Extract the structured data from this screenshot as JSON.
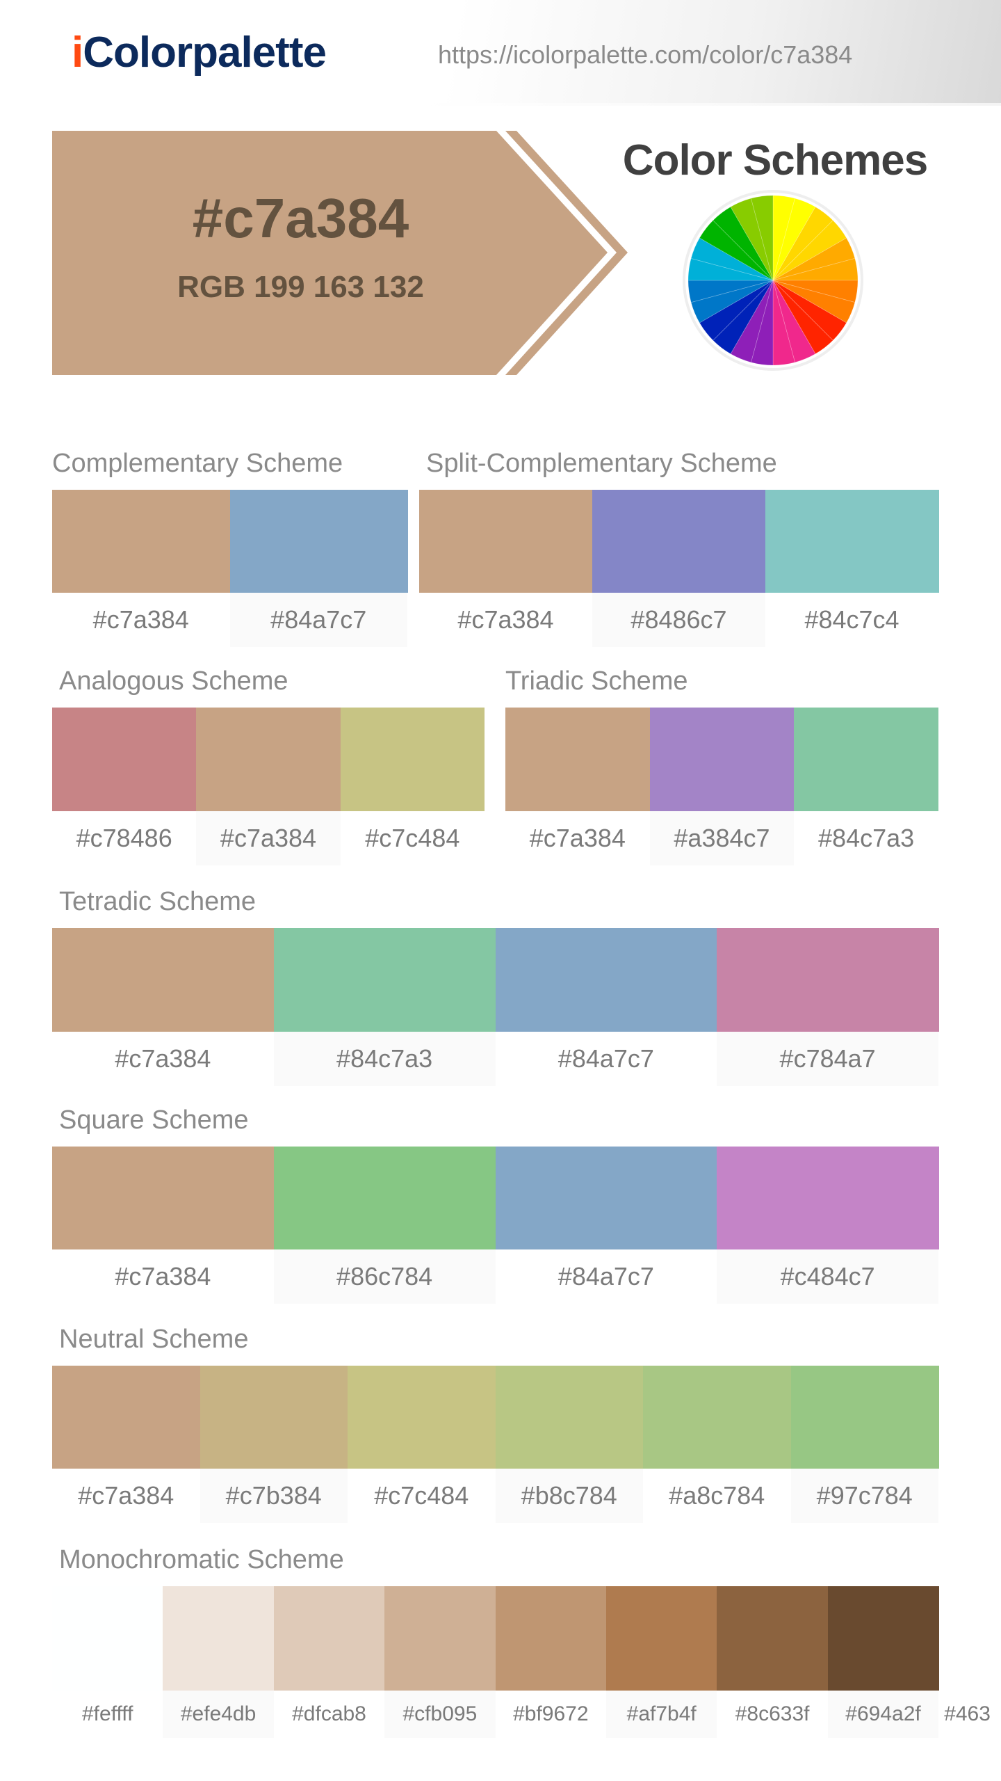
{
  "header": {
    "logo_prefix": "i",
    "logo_rest": "Colorpalette",
    "url": "https://icolorpalette.com/color/c7a384"
  },
  "hero": {
    "hex": "#c7a384",
    "rgb": "RGB 199 163 132",
    "color": "#c7a384",
    "text_color": "#63523f"
  },
  "color_schemes_title": "Color Schemes",
  "color_wheel": {
    "icon": "color-wheel-icon",
    "colors": [
      "#ffff00",
      "#ffd700",
      "#ffaa00",
      "#ffa500",
      "#ff8000",
      "#ff2400",
      "#f0288c",
      "#8e1fb8",
      "#0022b8",
      "#0077c8",
      "#00b0d8",
      "#00b400",
      "#88cc00"
    ]
  },
  "schemes": {
    "complementary": {
      "title": "Complementary Scheme",
      "colors": [
        "#c7a384",
        "#84a7c7"
      ]
    },
    "split_complementary": {
      "title": "Split-Complementary Scheme",
      "colors": [
        "#c7a384",
        "#8486c7",
        "#84c7c4"
      ]
    },
    "analogous": {
      "title": "Analogous Scheme",
      "colors": [
        "#c78486",
        "#c7a384",
        "#c7c484"
      ]
    },
    "triadic": {
      "title": "Triadic Scheme",
      "colors": [
        "#c7a384",
        "#a384c7",
        "#84c7a3"
      ]
    },
    "tetradic": {
      "title": "Tetradic Scheme",
      "colors": [
        "#c7a384",
        "#84c7a3",
        "#84a7c7",
        "#c784a7"
      ]
    },
    "square": {
      "title": "Square Scheme",
      "colors": [
        "#c7a384",
        "#86c784",
        "#84a7c7",
        "#c484c7"
      ]
    },
    "neutral": {
      "title": "Neutral Scheme",
      "colors": [
        "#c7a384",
        "#c7b384",
        "#c7c484",
        "#b8c784",
        "#a8c784",
        "#97c784"
      ]
    },
    "monochromatic": {
      "title": "Monochromatic Scheme",
      "colors": [
        "#feffff",
        "#efe4db",
        "#dfcab8",
        "#cfb095",
        "#bf9672",
        "#af7b4f",
        "#8c633f",
        "#694a2f",
        "#463"
      ]
    }
  }
}
